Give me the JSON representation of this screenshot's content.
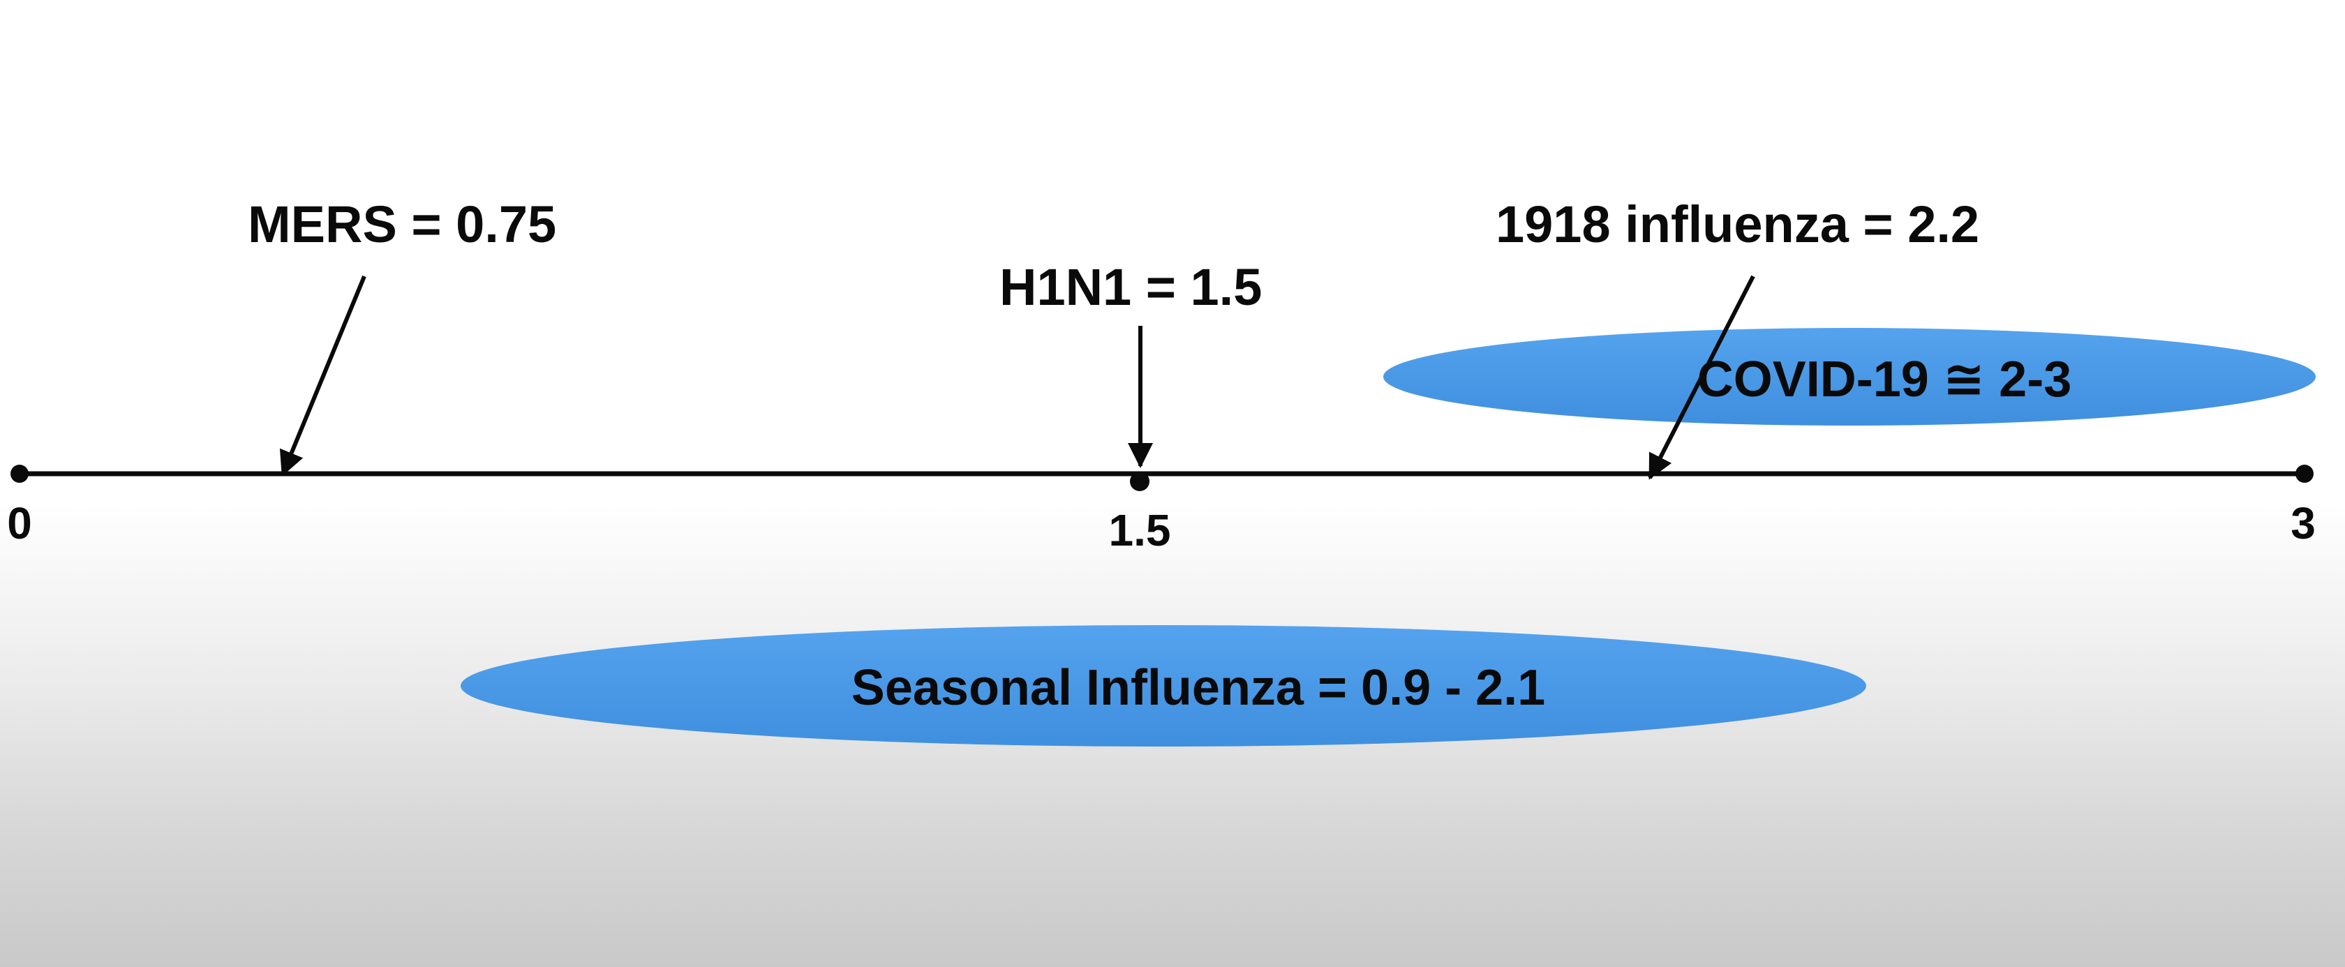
{
  "axis": {
    "min": 0,
    "max": 3,
    "ticks": [
      {
        "value": 0,
        "label": "0",
        "marker": "dot"
      },
      {
        "value": 1.5,
        "label": "1.5",
        "marker": "dot"
      },
      {
        "value": 3,
        "label": "3",
        "marker": "dot"
      }
    ]
  },
  "point_annotations": [
    {
      "key": "mers",
      "label": "MERS = 0.75"
    },
    {
      "key": "h1n1",
      "label": "H1N1 = 1.5"
    },
    {
      "key": "influenza_1918",
      "label": "1918 influenza = 2.2"
    }
  ],
  "range_annotations": [
    {
      "key": "covid19",
      "label": "COVID-19 ≅ 2-3"
    },
    {
      "key": "seasonal_influenza",
      "label": "Seasonal Influenza = 0.9 - 2.1"
    }
  ],
  "colors": {
    "ellipse_fill": "#4a9ae8",
    "ink": "#0a0a0a"
  }
}
